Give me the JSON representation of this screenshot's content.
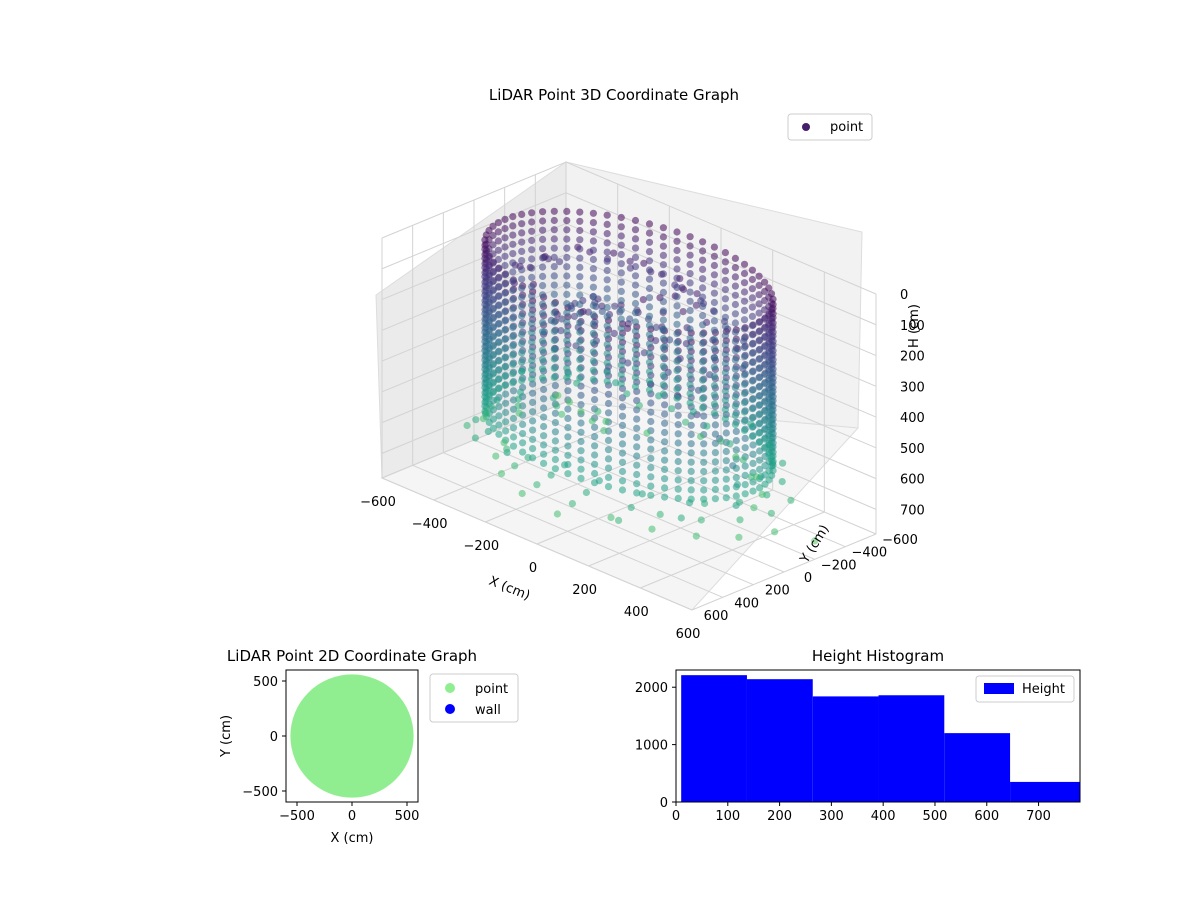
{
  "chart_data": [
    {
      "type": "scatter3d",
      "title": "LiDAR Point 3D Coordinate Graph",
      "xlabel": "X (cm)",
      "ylabel": "Y (cm)",
      "zlabel": "H (cm)",
      "xlim": [
        -600,
        600
      ],
      "ylim": [
        -600,
        600
      ],
      "zlim": [
        0,
        780
      ],
      "z_inverted": true,
      "xticks": [
        -600,
        -400,
        -200,
        0,
        200,
        400,
        600
      ],
      "yticks": [
        -600,
        -400,
        -200,
        0,
        200,
        400,
        600
      ],
      "zticks": [
        0,
        100,
        200,
        300,
        400,
        500,
        600,
        700
      ],
      "legend": {
        "location": "top-right",
        "entries": [
          {
            "label": "point",
            "color": "#46206b"
          }
        ]
      },
      "colormap": "viridis",
      "grid": true,
      "ring": {
        "radius": 480,
        "center": [
          0,
          0
        ],
        "columns": 64,
        "height_range": [
          20,
          560
        ]
      },
      "sample_points": [
        {
          "x": -560,
          "y": -480,
          "h": 720
        },
        {
          "x": -480,
          "y": -420,
          "h": 700
        },
        {
          "x": -400,
          "y": -360,
          "h": 690
        },
        {
          "x": -320,
          "y": -300,
          "h": 680
        },
        {
          "x": -240,
          "y": -240,
          "h": 670
        },
        {
          "x": 520,
          "y": 560,
          "h": 120
        },
        {
          "x": 560,
          "y": 500,
          "h": 180
        },
        {
          "x": 600,
          "y": 420,
          "h": 260
        },
        {
          "x": 580,
          "y": 300,
          "h": 380
        },
        {
          "x": 600,
          "y": -200,
          "h": 720
        }
      ]
    },
    {
      "type": "scatter",
      "title": "LiDAR Point 2D Coordinate Graph",
      "xlabel": "X (cm)",
      "ylabel": "Y (cm)",
      "xlim": [
        -600,
        600
      ],
      "ylim": [
        -600,
        600
      ],
      "xticks": [
        -500,
        0,
        500
      ],
      "yticks": [
        -500,
        0,
        500
      ],
      "legend": {
        "location": "outside-right",
        "entries": [
          {
            "label": "point",
            "color": "#90ee90"
          },
          {
            "label": "wall",
            "color": "#0000ff"
          }
        ]
      },
      "point_region": {
        "center": [
          0,
          0
        ],
        "radius": 560,
        "color": "#90ee90"
      }
    },
    {
      "type": "histogram",
      "title": "Height Histogram",
      "legend": {
        "location": "top-right",
        "entries": [
          {
            "label": "Height",
            "color": "#0000ff"
          }
        ]
      },
      "xlim": [
        0,
        780
      ],
      "ylim": [
        0,
        2300
      ],
      "xticks": [
        0,
        100,
        200,
        300,
        400,
        500,
        600,
        700
      ],
      "yticks": [
        0,
        1000,
        2000
      ],
      "bins": [
        {
          "start": 10,
          "end": 137,
          "count": 2210
        },
        {
          "start": 137,
          "end": 264,
          "count": 2140
        },
        {
          "start": 264,
          "end": 391,
          "count": 1840
        },
        {
          "start": 391,
          "end": 518,
          "count": 1860
        },
        {
          "start": 518,
          "end": 645,
          "count": 1200
        },
        {
          "start": 645,
          "end": 780,
          "count": 350
        }
      ],
      "color": "#0000ff"
    }
  ]
}
